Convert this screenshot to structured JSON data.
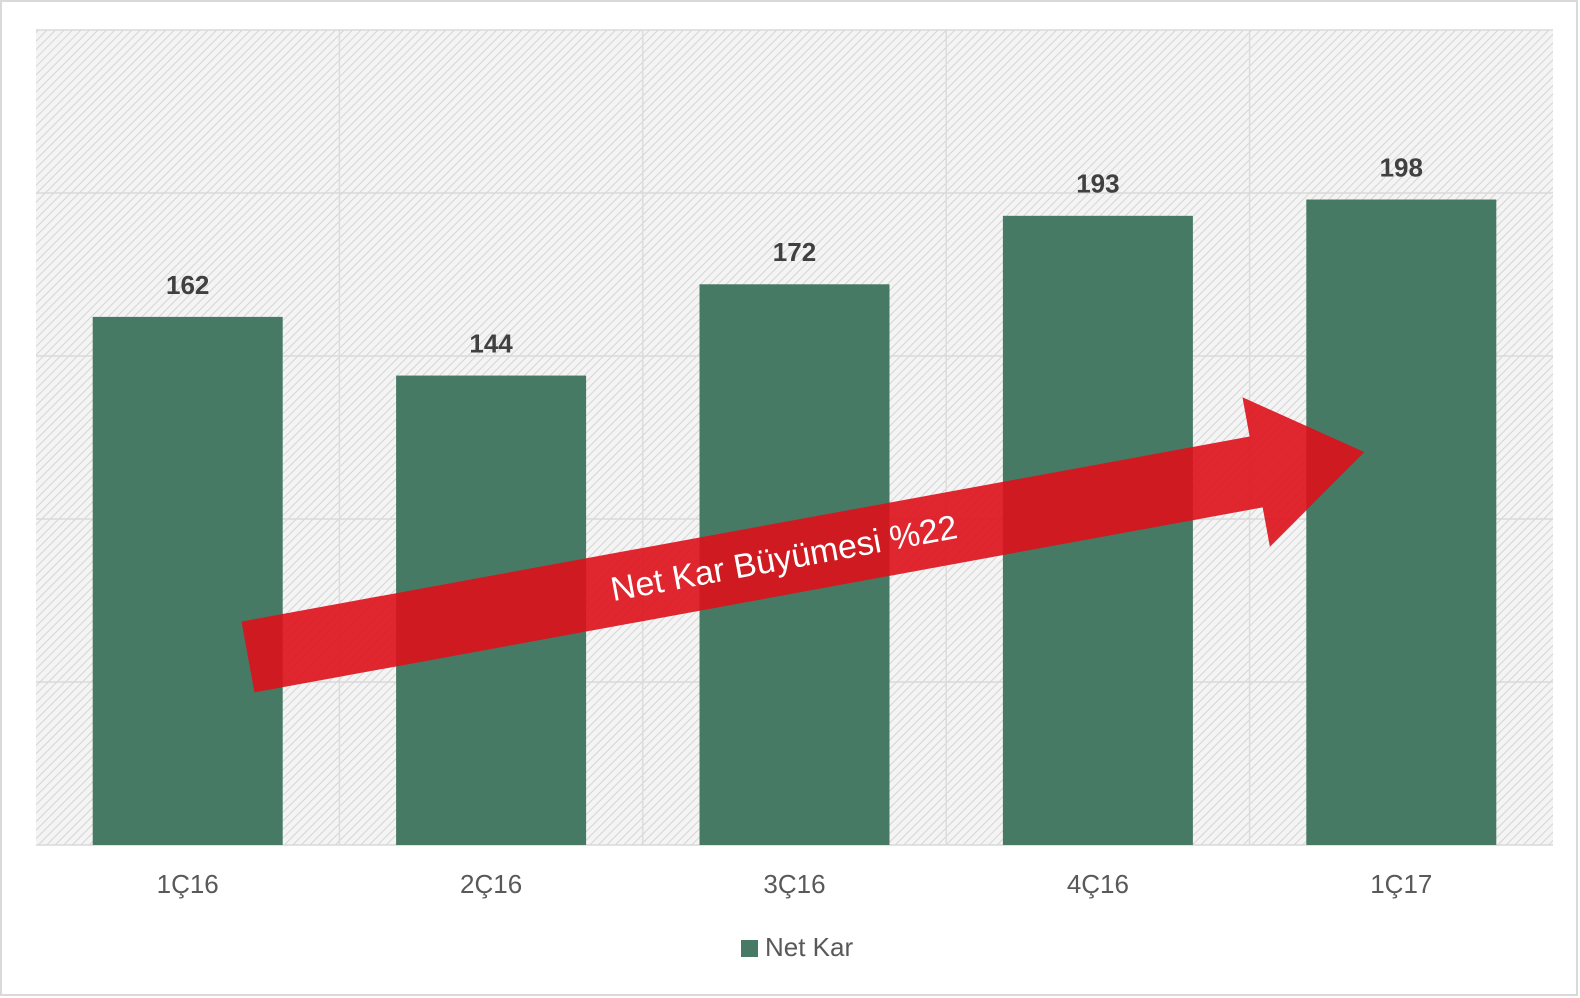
{
  "chart_data": {
    "type": "bar",
    "categories": [
      "1Ç16",
      "2Ç16",
      "3Ç16",
      "4Ç16",
      "1Ç17"
    ],
    "series": [
      {
        "name": "Net Kar",
        "color": "#477a64",
        "values": [
          162,
          144,
          172,
          193,
          198
        ]
      }
    ],
    "ylim": [
      0,
      250
    ],
    "yticks": [
      0,
      50,
      100,
      150,
      200,
      250
    ],
    "grid": true,
    "legend": "bottom",
    "annotations": [
      "Net Kar Büyümesi %22"
    ]
  }
}
